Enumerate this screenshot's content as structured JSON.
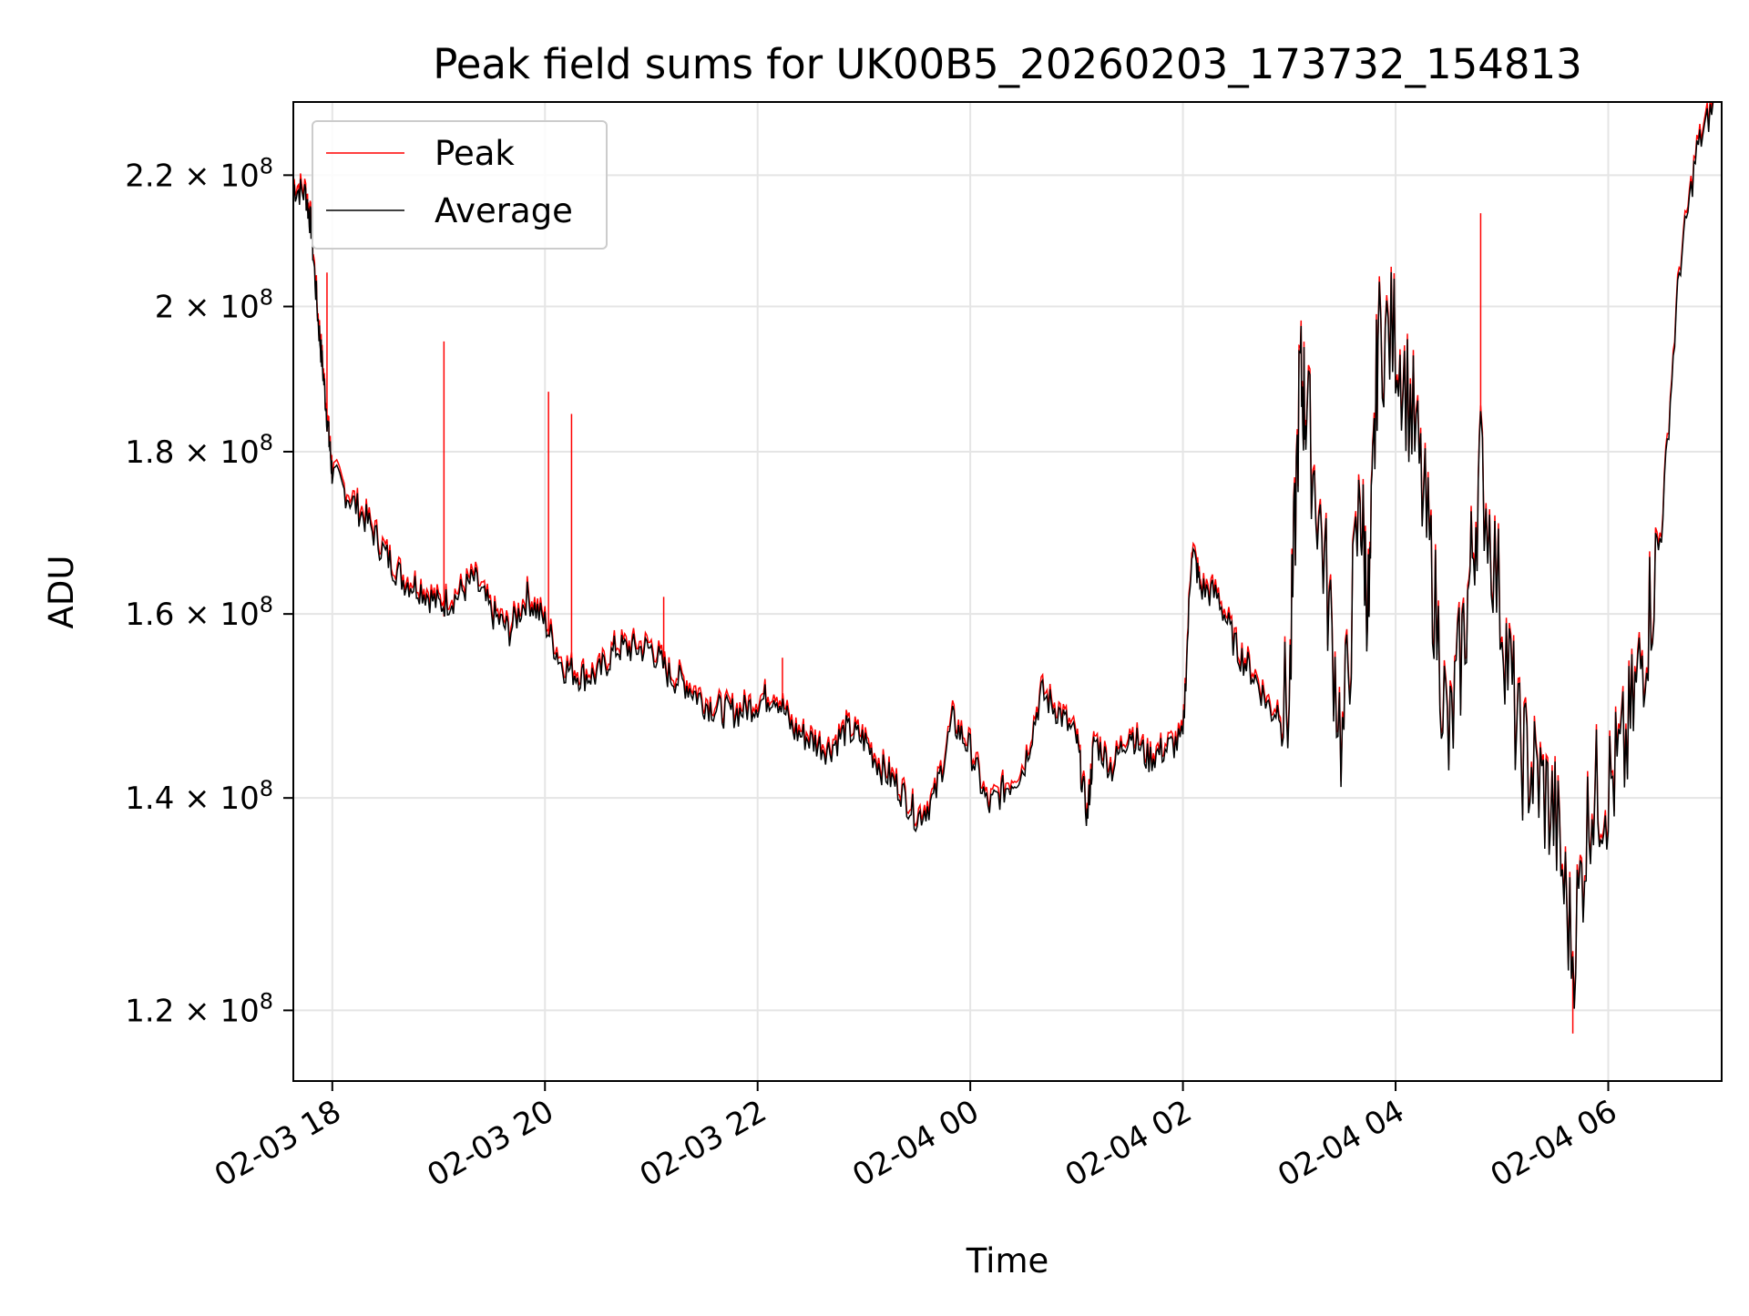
{
  "chart_data": {
    "type": "line",
    "title": "Peak field sums for UK00B5_20260203_173732_154813",
    "xlabel": "Time",
    "ylabel": "ADU",
    "yscale": "log",
    "ylim": [
      114000000,
      232000000
    ],
    "xlim": [
      "2026-02-03 17:38",
      "2026-02-04 07:04"
    ],
    "grid": true,
    "legend_position": "upper left",
    "x_ticks": [
      {
        "label": "02-03 18",
        "time": "2026-02-03 18:00"
      },
      {
        "label": "02-03 20",
        "time": "2026-02-03 20:00"
      },
      {
        "label": "02-03 22",
        "time": "2026-02-03 22:00"
      },
      {
        "label": "02-04 00",
        "time": "2026-02-04 00:00"
      },
      {
        "label": "02-04 02",
        "time": "2026-02-04 02:00"
      },
      {
        "label": "02-04 04",
        "time": "2026-02-04 04:00"
      },
      {
        "label": "02-04 06",
        "time": "2026-02-04 06:00"
      }
    ],
    "y_ticks": [
      {
        "mantissa": "1.2",
        "exp": "8",
        "value": 120000000
      },
      {
        "mantissa": "1.4",
        "exp": "8",
        "value": 140000000
      },
      {
        "mantissa": "1.6",
        "exp": "8",
        "value": 160000000
      },
      {
        "mantissa": "1.8",
        "exp": "8",
        "value": 180000000
      },
      {
        "mantissa": "2",
        "exp": "8",
        "value": 200000000
      },
      {
        "mantissa": "2.2",
        "exp": "8",
        "value": 220000000
      }
    ],
    "series": [
      {
        "name": "Peak",
        "color": "#ff0000",
        "spikes": [
          {
            "t": "2026-02-03 17:57",
            "y": 205000000
          },
          {
            "t": "2026-02-03 19:03",
            "y": 195000000
          },
          {
            "t": "2026-02-03 20:02",
            "y": 188000000
          },
          {
            "t": "2026-02-03 20:15",
            "y": 185000000
          },
          {
            "t": "2026-02-03 21:07",
            "y": 162000000
          },
          {
            "t": "2026-02-03 22:14",
            "y": 155000000
          },
          {
            "t": "2026-02-04 04:48",
            "y": 214000000
          },
          {
            "t": "2026-02-04 05:40",
            "y": 118000000
          }
        ]
      },
      {
        "name": "Average",
        "color": "#000000",
        "points": [
          [
            "2026-02-03 17:38",
            218000000
          ],
          [
            "2026-02-03 17:45",
            217000000
          ],
          [
            "2026-02-03 17:48",
            212000000
          ],
          [
            "2026-02-03 17:52",
            198000000
          ],
          [
            "2026-02-03 17:55",
            190000000
          ],
          [
            "2026-02-03 17:58",
            182000000
          ],
          [
            "2026-02-03 18:00",
            177000000
          ],
          [
            "2026-02-03 18:10",
            174000000
          ],
          [
            "2026-02-03 18:20",
            171000000
          ],
          [
            "2026-02-03 18:30",
            167000000
          ],
          [
            "2026-02-03 18:40",
            164000000
          ],
          [
            "2026-02-03 18:50",
            163000000
          ],
          [
            "2026-02-03 19:00",
            161000000
          ],
          [
            "2026-02-03 19:10",
            162000000
          ],
          [
            "2026-02-03 19:20",
            164000000
          ],
          [
            "2026-02-03 19:30",
            160000000
          ],
          [
            "2026-02-03 19:40",
            158000000
          ],
          [
            "2026-02-03 19:50",
            162000000
          ],
          [
            "2026-02-03 20:00",
            159000000
          ],
          [
            "2026-02-03 20:10",
            154000000
          ],
          [
            "2026-02-03 20:20",
            153000000
          ],
          [
            "2026-02-03 20:30",
            153000000
          ],
          [
            "2026-02-03 20:40",
            156000000
          ],
          [
            "2026-02-03 20:50",
            156000000
          ],
          [
            "2026-02-03 21:00",
            156000000
          ],
          [
            "2026-02-03 21:10",
            153000000
          ],
          [
            "2026-02-03 21:20",
            152000000
          ],
          [
            "2026-02-03 21:30",
            150000000
          ],
          [
            "2026-02-03 21:40",
            149000000
          ],
          [
            "2026-02-03 21:50",
            149000000
          ],
          [
            "2026-02-03 22:00",
            150000000
          ],
          [
            "2026-02-03 22:10",
            151000000
          ],
          [
            "2026-02-03 22:20",
            147000000
          ],
          [
            "2026-02-03 22:30",
            146000000
          ],
          [
            "2026-02-03 22:40",
            145000000
          ],
          [
            "2026-02-03 22:50",
            147000000
          ],
          [
            "2026-02-03 23:00",
            146000000
          ],
          [
            "2026-02-03 23:10",
            143000000
          ],
          [
            "2026-02-03 23:20",
            141000000
          ],
          [
            "2026-02-03 23:30",
            138000000
          ],
          [
            "2026-02-03 23:40",
            140000000
          ],
          [
            "2026-02-03 23:50",
            148000000
          ],
          [
            "2026-02-04 00:00",
            145000000
          ],
          [
            "2026-02-04 00:10",
            139000000
          ],
          [
            "2026-02-04 00:20",
            141000000
          ],
          [
            "2026-02-04 00:30",
            143000000
          ],
          [
            "2026-02-04 00:40",
            151000000
          ],
          [
            "2026-02-04 00:50",
            149000000
          ],
          [
            "2026-02-04 01:00",
            146000000
          ],
          [
            "2026-02-04 01:06",
            138000000
          ],
          [
            "2026-02-04 01:10",
            146000000
          ],
          [
            "2026-02-04 01:20",
            143000000
          ],
          [
            "2026-02-04 01:30",
            147000000
          ],
          [
            "2026-02-04 01:40",
            144000000
          ],
          [
            "2026-02-04 01:50",
            145000000
          ],
          [
            "2026-02-04 02:00",
            146000000
          ],
          [
            "2026-02-04 02:05",
            168000000
          ],
          [
            "2026-02-04 02:10",
            163000000
          ],
          [
            "2026-02-04 02:20",
            162000000
          ],
          [
            "2026-02-04 02:30",
            156000000
          ],
          [
            "2026-02-04 02:40",
            153000000
          ],
          [
            "2026-02-04 02:50",
            149000000
          ],
          [
            "2026-02-04 03:00",
            150000000
          ],
          [
            "2026-02-04 03:06",
            190000000
          ],
          [
            "2026-02-04 03:10",
            185000000
          ],
          [
            "2026-02-04 03:20",
            166000000
          ],
          [
            "2026-02-04 03:30",
            145000000
          ],
          [
            "2026-02-04 03:40",
            174000000
          ],
          [
            "2026-02-04 03:45",
            160000000
          ],
          [
            "2026-02-04 03:50",
            195000000
          ],
          [
            "2026-02-04 04:00",
            196000000
          ],
          [
            "2026-02-04 04:10",
            184000000
          ],
          [
            "2026-02-04 04:20",
            166000000
          ],
          [
            "2026-02-04 04:30",
            145000000
          ],
          [
            "2026-02-04 04:40",
            160000000
          ],
          [
            "2026-02-04 04:48",
            178000000
          ],
          [
            "2026-02-04 05:00",
            160000000
          ],
          [
            "2026-02-04 05:10",
            145000000
          ],
          [
            "2026-02-04 05:20",
            142000000
          ],
          [
            "2026-02-04 05:30",
            138000000
          ],
          [
            "2026-02-04 05:40",
            125000000
          ],
          [
            "2026-02-04 05:50",
            140000000
          ],
          [
            "2026-02-04 06:00",
            141000000
          ],
          [
            "2026-02-04 06:10",
            145000000
          ],
          [
            "2026-02-04 06:20",
            156000000
          ],
          [
            "2026-02-04 06:30",
            170000000
          ],
          [
            "2026-02-04 06:40",
            205000000
          ],
          [
            "2026-02-04 06:50",
            224000000
          ],
          [
            "2026-02-04 07:00",
            232000000
          ]
        ]
      }
    ]
  }
}
